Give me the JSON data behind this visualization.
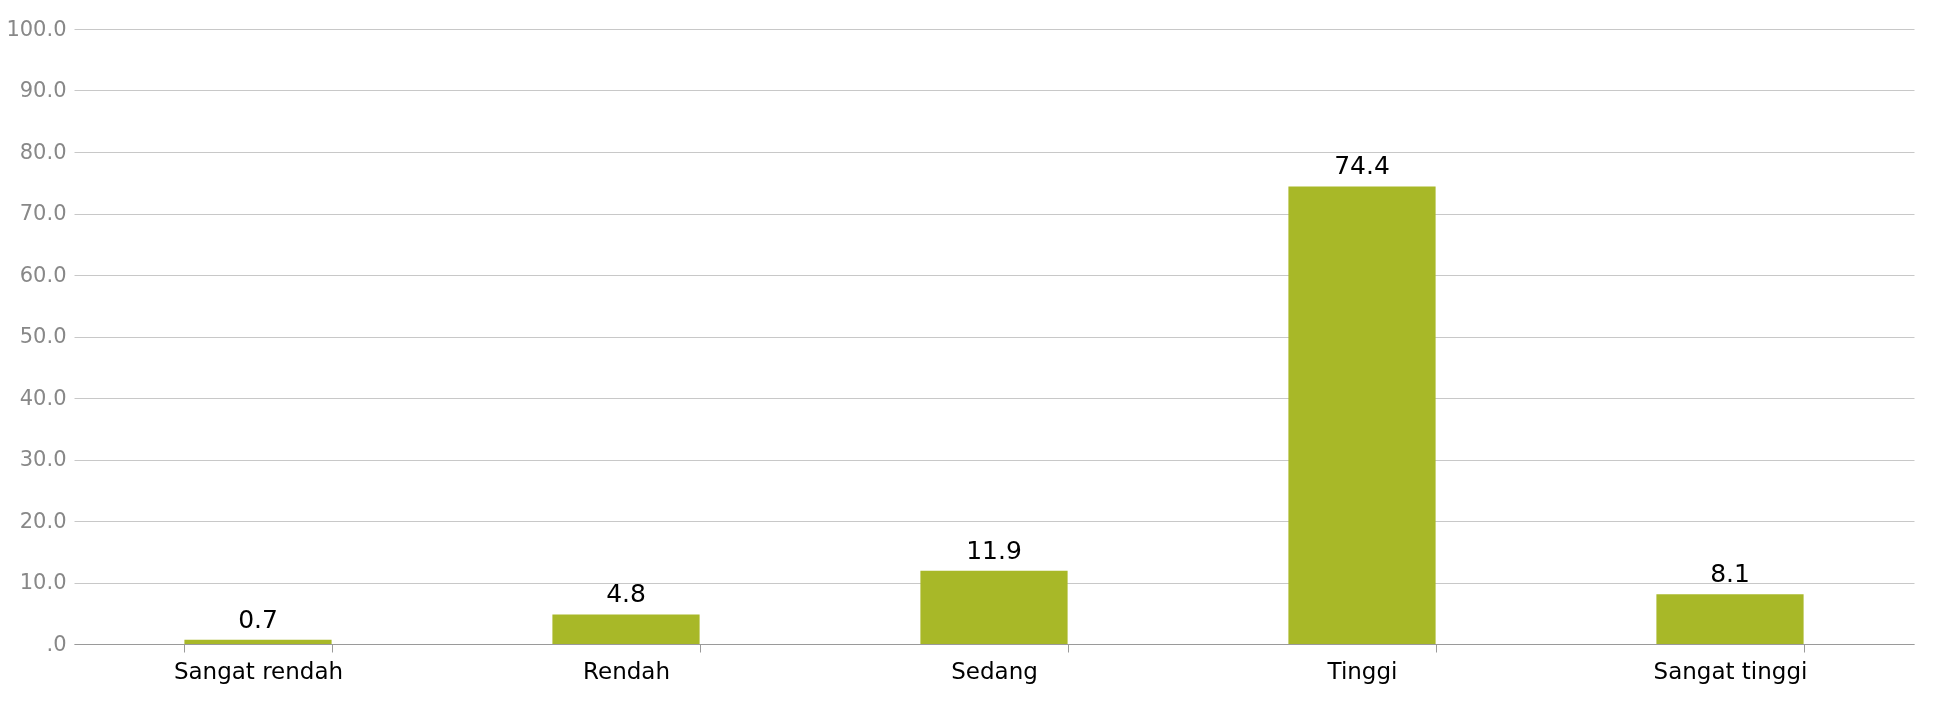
{
  "chart_data": {
    "type": "bar",
    "categories": [
      "Sangat rendah",
      "Rendah",
      "Sedang",
      "Tinggi",
      "Sangat tinggi"
    ],
    "values": [
      0.7,
      4.8,
      11.9,
      74.4,
      8.1
    ],
    "color": "#a8b828",
    "ylim": [
      0,
      100
    ],
    "yticks": [
      {
        "value": 0,
        "label": ".0"
      },
      {
        "value": 10,
        "label": "10.0"
      },
      {
        "value": 20,
        "label": "20.0"
      },
      {
        "value": 30,
        "label": "30.0"
      },
      {
        "value": 40,
        "label": "40.0"
      },
      {
        "value": 50,
        "label": "50.0"
      },
      {
        "value": 60,
        "label": "60.0"
      },
      {
        "value": 70,
        "label": "70.0"
      },
      {
        "value": 80,
        "label": "80.0"
      },
      {
        "value": 90,
        "label": "90.0"
      },
      {
        "value": 100,
        "label": "100.0"
      }
    ],
    "grid": "y",
    "data_labels": true
  }
}
